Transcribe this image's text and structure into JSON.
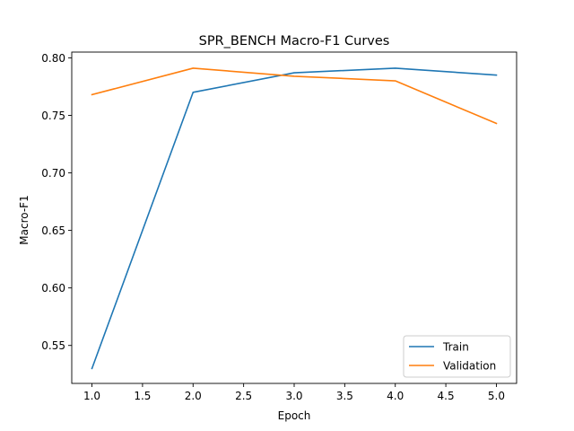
{
  "chart_data": {
    "type": "line",
    "title": "SPR_BENCH Macro-F1 Curves",
    "xlabel": "Epoch",
    "ylabel": "Macro-F1",
    "x": [
      1,
      2,
      3,
      4,
      5
    ],
    "xlim": [
      0.8,
      5.2
    ],
    "ylim": [
      0.517,
      0.805
    ],
    "xticks": [
      1.0,
      1.5,
      2.0,
      2.5,
      3.0,
      3.5,
      4.0,
      4.5,
      5.0
    ],
    "xtick_labels": [
      "1.0",
      "1.5",
      "2.0",
      "2.5",
      "3.0",
      "3.5",
      "4.0",
      "4.5",
      "5.0"
    ],
    "yticks": [
      0.55,
      0.6,
      0.65,
      0.7,
      0.75,
      0.8
    ],
    "ytick_labels": [
      "0.55",
      "0.60",
      "0.65",
      "0.70",
      "0.75",
      "0.80"
    ],
    "grid": false,
    "legend_position": "lower-right",
    "series": [
      {
        "name": "Train",
        "color": "#1f77b4",
        "values": [
          0.53,
          0.77,
          0.787,
          0.791,
          0.785
        ]
      },
      {
        "name": "Validation",
        "color": "#ff7f0e",
        "values": [
          0.768,
          0.791,
          0.784,
          0.78,
          0.743
        ]
      }
    ]
  }
}
